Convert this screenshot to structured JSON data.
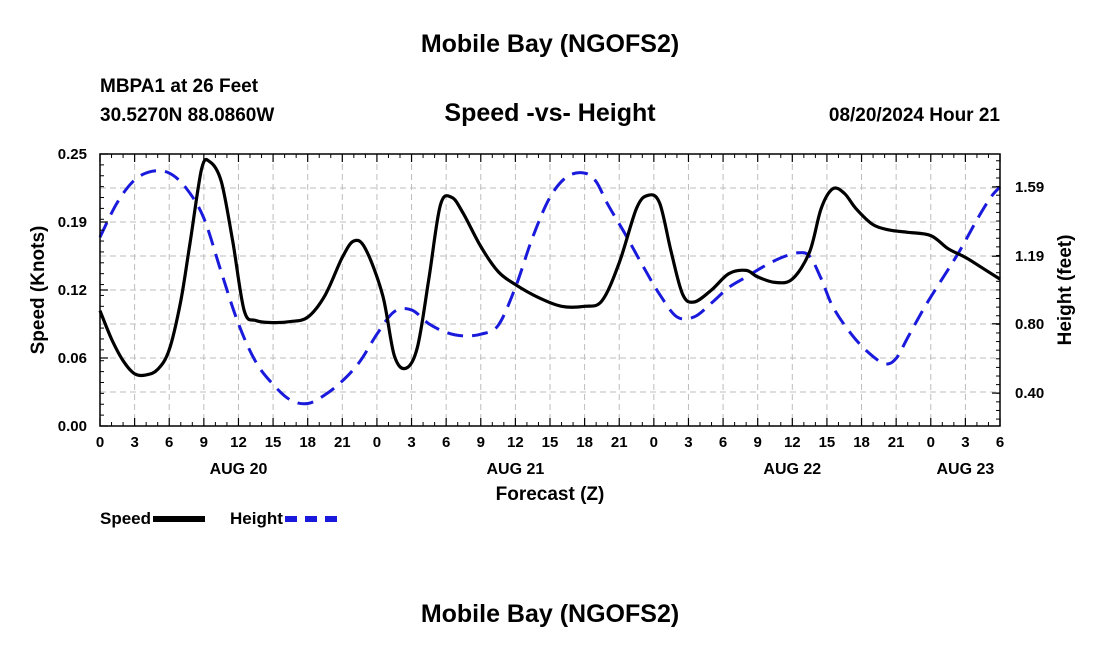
{
  "header": {
    "title": "Mobile Bay (NGOFS2)",
    "station": "MBPA1 at 26 Feet",
    "coords": "30.5270N  88.0860W",
    "chart_title": "Speed -vs- Height",
    "datetime": "08/20/2024 Hour 21"
  },
  "footer": {
    "title": "Mobile Bay (NGOFS2)"
  },
  "legend": {
    "speed": "Speed",
    "height": "Height"
  },
  "colors": {
    "speed": "#000000",
    "height": "#1a1adc",
    "grid": "#bdbdbd"
  },
  "chart_data": {
    "type": "line",
    "title": "Speed -vs- Height",
    "xlabel": "Forecast (Z)",
    "ylabel_left": "Speed (Knots)",
    "ylabel_right": "Height (feet)",
    "x_unit": "hours since 08/20 00Z",
    "xlim": [
      0,
      78
    ],
    "ylim_left": [
      0.0,
      0.25
    ],
    "ylim_right": [
      0.21,
      1.78
    ],
    "grid": true,
    "legend_position": "bottom-left",
    "x_ticks": [
      {
        "x": 0,
        "label": "0"
      },
      {
        "x": 3,
        "label": "3"
      },
      {
        "x": 6,
        "label": "6"
      },
      {
        "x": 9,
        "label": "9"
      },
      {
        "x": 12,
        "label": "12"
      },
      {
        "x": 15,
        "label": "15"
      },
      {
        "x": 18,
        "label": "18"
      },
      {
        "x": 21,
        "label": "21"
      },
      {
        "x": 24,
        "label": "0"
      },
      {
        "x": 27,
        "label": "3"
      },
      {
        "x": 30,
        "label": "6"
      },
      {
        "x": 33,
        "label": "9"
      },
      {
        "x": 36,
        "label": "12"
      },
      {
        "x": 39,
        "label": "15"
      },
      {
        "x": 42,
        "label": "18"
      },
      {
        "x": 45,
        "label": "21"
      },
      {
        "x": 48,
        "label": "0"
      },
      {
        "x": 51,
        "label": "3"
      },
      {
        "x": 54,
        "label": "6"
      },
      {
        "x": 57,
        "label": "9"
      },
      {
        "x": 60,
        "label": "12"
      },
      {
        "x": 63,
        "label": "15"
      },
      {
        "x": 66,
        "label": "18"
      },
      {
        "x": 69,
        "label": "21"
      },
      {
        "x": 72,
        "label": "0"
      },
      {
        "x": 75,
        "label": "3"
      },
      {
        "x": 78,
        "label": "6"
      }
    ],
    "date_labels": [
      {
        "x": 12,
        "label": "AUG 20"
      },
      {
        "x": 36,
        "label": "AUG 21"
      },
      {
        "x": 60,
        "label": "AUG 22"
      },
      {
        "x": 75,
        "label": "AUG 23"
      }
    ],
    "y_ticks_left": [
      {
        "value": 0.0,
        "label": "0.00"
      },
      {
        "value": 0.0625,
        "label": "0.06"
      },
      {
        "value": 0.125,
        "label": "0.12"
      },
      {
        "value": 0.1875,
        "label": "0.19"
      },
      {
        "value": 0.25,
        "label": "0.25"
      }
    ],
    "y_ticks_right": [
      {
        "value": 0.4,
        "label": "0.40"
      },
      {
        "value": 0.8,
        "label": "0.80"
      },
      {
        "value": 1.19,
        "label": "1.19"
      },
      {
        "value": 1.59,
        "label": "1.59"
      }
    ],
    "series": [
      {
        "name": "Speed",
        "axis": "left",
        "x": [
          0,
          1,
          2,
          3,
          4,
          5,
          6,
          7,
          7.8,
          8.8,
          9.5,
          10.5,
          11.5,
          12.5,
          13.5,
          15,
          16.5,
          18,
          19.5,
          21,
          22,
          23,
          24.5,
          25.5,
          26.5,
          27.5,
          28.5,
          29.5,
          30.5,
          31.5,
          33,
          34.5,
          36,
          38,
          40,
          42,
          43.5,
          45,
          46.5,
          47.5,
          48.5,
          49.5,
          50.5,
          51.5,
          53,
          54.5,
          56,
          57,
          58.5,
          60,
          61.5,
          62.5,
          63.5,
          64.5,
          65.5,
          67,
          68.5,
          70,
          72,
          73.5,
          75,
          76.5,
          78
        ],
        "values": [
          0.106,
          0.08,
          0.06,
          0.048,
          0.047,
          0.052,
          0.07,
          0.115,
          0.168,
          0.236,
          0.243,
          0.225,
          0.17,
          0.106,
          0.097,
          0.095,
          0.096,
          0.1,
          0.12,
          0.155,
          0.17,
          0.163,
          0.12,
          0.065,
          0.053,
          0.072,
          0.135,
          0.203,
          0.21,
          0.195,
          0.165,
          0.142,
          0.13,
          0.118,
          0.11,
          0.11,
          0.115,
          0.15,
          0.2,
          0.212,
          0.205,
          0.16,
          0.121,
          0.114,
          0.125,
          0.14,
          0.143,
          0.137,
          0.132,
          0.135,
          0.16,
          0.2,
          0.218,
          0.214,
          0.2,
          0.185,
          0.18,
          0.178,
          0.175,
          0.163,
          0.155,
          0.145,
          0.135
        ]
      },
      {
        "name": "Height",
        "axis": "right",
        "x": [
          0,
          1.5,
          3,
          4.5,
          6,
          7.5,
          9,
          10.5,
          12,
          13.5,
          15,
          16.5,
          18,
          19.5,
          21,
          22.5,
          24,
          25.5,
          27,
          28.5,
          30,
          31.5,
          33,
          34.5,
          36,
          37.5,
          39,
          40.5,
          42,
          43,
          44,
          45.5,
          47,
          48.5,
          50,
          51.5,
          53,
          54.5,
          56,
          57.5,
          59,
          60.5,
          61.5,
          62.5,
          63.5,
          65,
          66.5,
          68,
          69,
          70,
          71.5,
          73,
          74.5,
          76,
          77.2,
          78
        ],
        "values": [
          1.3,
          1.5,
          1.63,
          1.68,
          1.67,
          1.58,
          1.41,
          1.1,
          0.8,
          0.58,
          0.45,
          0.36,
          0.34,
          0.39,
          0.47,
          0.58,
          0.74,
          0.87,
          0.88,
          0.8,
          0.75,
          0.73,
          0.74,
          0.79,
          1.01,
          1.3,
          1.53,
          1.65,
          1.67,
          1.62,
          1.49,
          1.32,
          1.14,
          0.97,
          0.84,
          0.84,
          0.92,
          1.01,
          1.07,
          1.13,
          1.18,
          1.21,
          1.19,
          1.06,
          0.9,
          0.75,
          0.64,
          0.57,
          0.6,
          0.72,
          0.9,
          1.06,
          1.22,
          1.4,
          1.53,
          1.59
        ]
      }
    ]
  }
}
